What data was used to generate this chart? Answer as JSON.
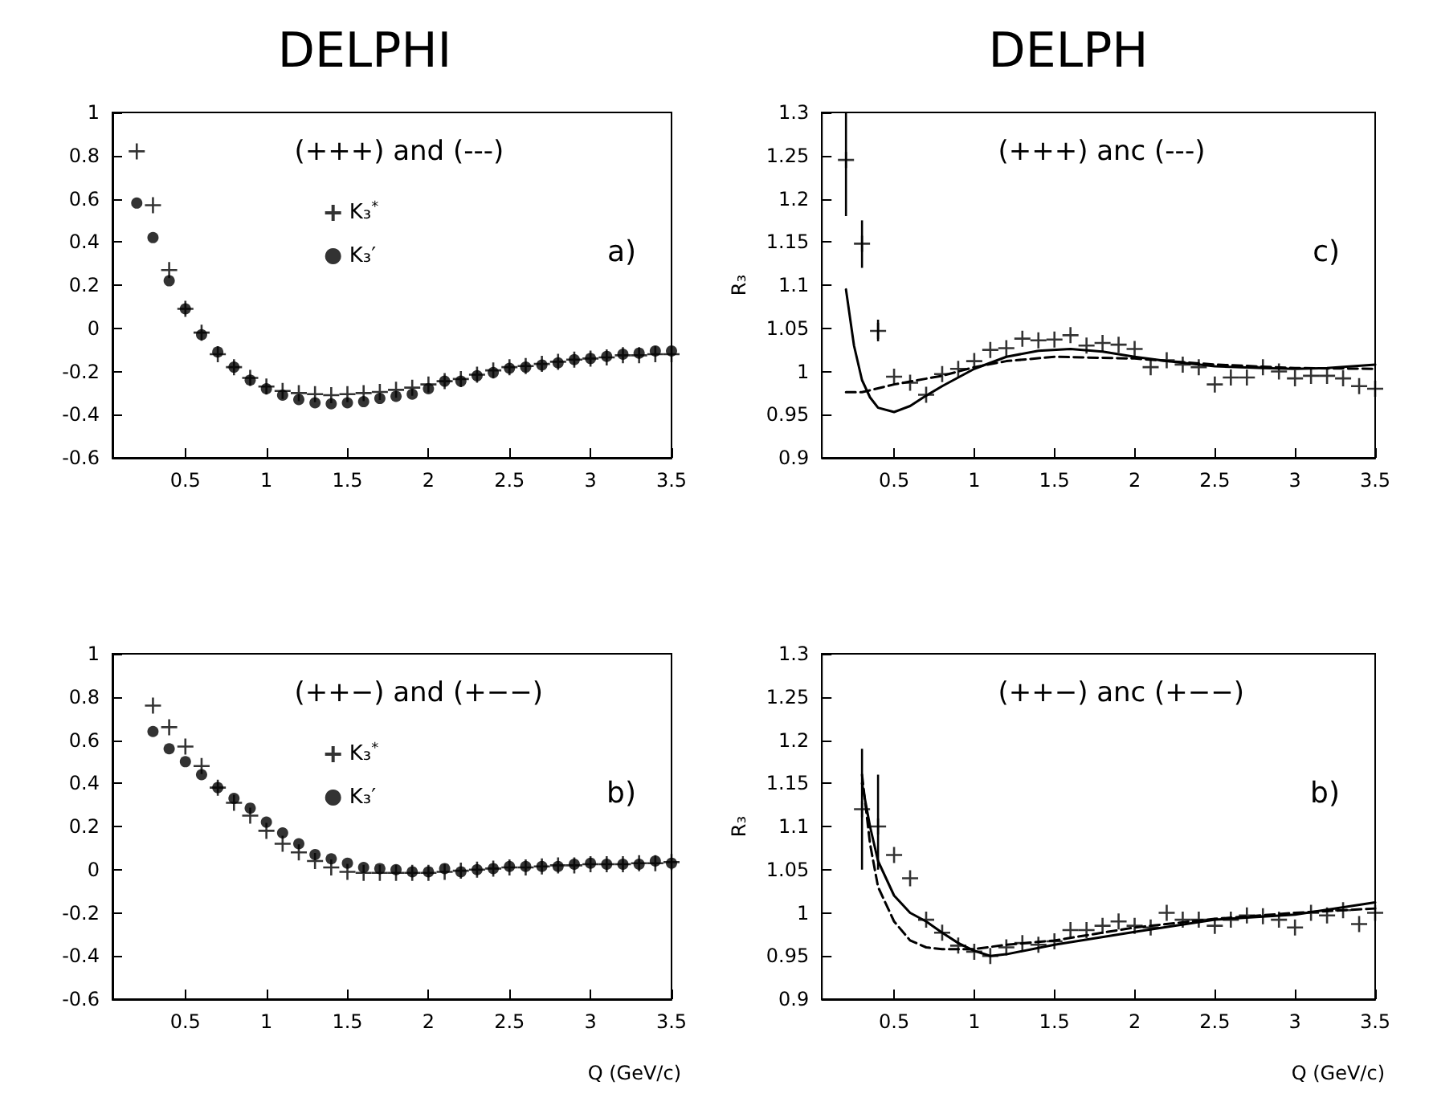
{
  "chart_data": [
    {
      "type": "scatter",
      "title": "DELPHI",
      "annotations": [
        "(+++) and (---)",
        "a)"
      ],
      "xlim": [
        0.05,
        3.5
      ],
      "xticks": [
        0.5,
        1,
        1.5,
        2,
        2.5,
        3,
        3.5
      ],
      "ylim": [
        -0.6,
        1
      ],
      "yticks": [
        -0.6,
        -0.4,
        -0.2,
        0,
        0.2,
        0.4,
        0.6,
        0.8,
        1
      ],
      "legend": "top",
      "x": [
        0.2,
        0.3,
        0.4,
        0.5,
        0.6,
        0.7,
        0.8,
        0.9,
        1.0,
        1.1,
        1.2,
        1.3,
        1.4,
        1.5,
        1.6,
        1.7,
        1.8,
        1.9,
        2.0,
        2.1,
        2.2,
        2.3,
        2.4,
        2.5,
        2.6,
        2.7,
        2.8,
        2.9,
        3.0,
        3.1,
        3.2,
        3.3,
        3.4,
        3.5
      ],
      "series": [
        {
          "name": "K₃$^{*}$",
          "color": "#000000",
          "marker": "cross",
          "values": [
            0.82,
            0.57,
            0.27,
            0.09,
            -0.02,
            -0.12,
            -0.18,
            -0.23,
            -0.27,
            -0.29,
            -0.3,
            -0.305,
            -0.31,
            -0.305,
            -0.3,
            -0.295,
            -0.285,
            -0.275,
            -0.26,
            -0.245,
            -0.235,
            -0.215,
            -0.195,
            -0.18,
            -0.175,
            -0.165,
            -0.155,
            -0.145,
            -0.14,
            -0.135,
            -0.125,
            -0.125,
            -0.12,
            -0.12
          ]
        },
        {
          "name": "K₃′",
          "color": "#000000",
          "marker": "circle",
          "values": [
            0.58,
            0.42,
            0.22,
            0.09,
            -0.03,
            -0.11,
            -0.18,
            -0.24,
            -0.28,
            -0.31,
            -0.33,
            -0.345,
            -0.35,
            -0.345,
            -0.34,
            -0.325,
            -0.315,
            -0.305,
            -0.28,
            -0.245,
            -0.245,
            -0.22,
            -0.205,
            -0.185,
            -0.18,
            -0.17,
            -0.16,
            -0.145,
            -0.14,
            -0.13,
            -0.12,
            -0.115,
            -0.105,
            -0.105
          ]
        }
      ]
    },
    {
      "type": "scatter",
      "title": "DELPH",
      "ylabel": "R₃",
      "annotations": [
        "(+++) anc (---)",
        "c)"
      ],
      "xlim": [
        0.05,
        3.5
      ],
      "xticks": [
        0.5,
        1,
        1.5,
        2,
        2.5,
        3,
        3.5
      ],
      "ylim": [
        0.9,
        1.3
      ],
      "yticks": [
        0.9,
        0.95,
        1,
        1.05,
        1.1,
        1.15,
        1.2,
        1.25,
        1.3
      ],
      "x": [
        0.2,
        0.3,
        0.4,
        0.5,
        0.6,
        0.7,
        0.8,
        0.9,
        1.0,
        1.1,
        1.2,
        1.3,
        1.4,
        1.5,
        1.6,
        1.7,
        1.8,
        1.9,
        2.0,
        2.1,
        2.2,
        2.3,
        2.4,
        2.5,
        2.6,
        2.7,
        2.8,
        2.9,
        3.0,
        3.1,
        3.2,
        3.3,
        3.4,
        3.5
      ],
      "series": [
        {
          "color": "#000000",
          "marker": "cross",
          "values": [
            1.245,
            1.148,
            1.047,
            0.994,
            0.987,
            0.973,
            0.997,
            1.003,
            1.012,
            1.025,
            1.027,
            1.038,
            1.036,
            1.037,
            1.042,
            1.03,
            1.033,
            1.031,
            1.026,
            1.005,
            1.013,
            1.008,
            1.005,
            0.985,
            0.993,
            0.993,
            1.005,
            1.0,
            0.992,
            0.995,
            0.995,
            0.992,
            0.983,
            0.98
          ],
          "errors": [
            [
              1.18,
              1.3
            ],
            [
              1.12,
              1.175
            ],
            [
              1.035,
              1.06
            ],
            null,
            null,
            null,
            null,
            null,
            null,
            null,
            null,
            null,
            null,
            null,
            null,
            null,
            null,
            null,
            null,
            null,
            null,
            null,
            null,
            null,
            null,
            null,
            null,
            null,
            null,
            null,
            null,
            null,
            null,
            null
          ]
        },
        {
          "type": "line",
          "color": "#000000",
          "line_style": "dashed",
          "x": [
            0.2,
            0.3,
            0.5,
            0.8,
            1.0,
            1.2,
            1.5,
            2.0,
            2.5,
            3.0,
            3.5
          ],
          "values": [
            0.976,
            0.976,
            0.985,
            0.995,
            1.005,
            1.012,
            1.017,
            1.015,
            1.008,
            1.004,
            1.003
          ]
        },
        {
          "type": "line",
          "color": "#000000",
          "line_style": "solid",
          "x": [
            0.2,
            0.25,
            0.3,
            0.35,
            0.4,
            0.5,
            0.6,
            0.7,
            0.8,
            1.0,
            1.2,
            1.4,
            1.6,
            1.8,
            2.0,
            2.2,
            2.5,
            2.8,
            3.0,
            3.2,
            3.5
          ],
          "values": [
            1.095,
            1.03,
            0.99,
            0.97,
            0.958,
            0.953,
            0.96,
            0.972,
            0.983,
            1.003,
            1.017,
            1.024,
            1.026,
            1.023,
            1.017,
            1.012,
            1.006,
            1.004,
            1.003,
            1.004,
            1.008
          ]
        }
      ]
    },
    {
      "type": "scatter",
      "xlabel": "Q (GeV/c)",
      "annotations": [
        "(++−) and (+−−)",
        "b)"
      ],
      "xlim": [
        0.05,
        3.5
      ],
      "xticks": [
        0.5,
        1,
        1.5,
        2,
        2.5,
        3,
        3.5
      ],
      "ylim": [
        -0.6,
        1
      ],
      "yticks": [
        -0.6,
        -0.4,
        -0.2,
        0,
        0.2,
        0.4,
        0.6,
        0.8,
        1
      ],
      "legend": "top",
      "x": [
        0.3,
        0.4,
        0.5,
        0.6,
        0.7,
        0.8,
        0.9,
        1.0,
        1.1,
        1.2,
        1.3,
        1.4,
        1.5,
        1.6,
        1.7,
        1.8,
        1.9,
        2.0,
        2.1,
        2.2,
        2.3,
        2.4,
        2.5,
        2.6,
        2.7,
        2.8,
        2.9,
        3.0,
        3.1,
        3.2,
        3.3,
        3.4,
        3.5
      ],
      "series": [
        {
          "name": "K₃$^{*}$",
          "color": "#000000",
          "marker": "cross",
          "values": [
            0.76,
            0.66,
            0.57,
            0.48,
            0.38,
            0.31,
            0.25,
            0.18,
            0.12,
            0.08,
            0.04,
            0.01,
            -0.01,
            -0.015,
            -0.015,
            -0.015,
            -0.015,
            -0.015,
            -0.01,
            -0.005,
            0.0,
            0.005,
            0.01,
            0.01,
            0.015,
            0.02,
            0.02,
            0.025,
            0.025,
            0.025,
            0.03,
            0.03,
            0.035
          ]
        },
        {
          "name": "K₃′",
          "color": "#000000",
          "marker": "circle",
          "values": [
            0.64,
            0.56,
            0.5,
            0.44,
            0.38,
            0.33,
            0.285,
            0.22,
            0.17,
            0.12,
            0.07,
            0.05,
            0.03,
            0.01,
            0.005,
            0.0,
            -0.01,
            -0.01,
            0.005,
            -0.01,
            0.0,
            0.005,
            0.015,
            0.015,
            0.015,
            0.015,
            0.025,
            0.03,
            0.025,
            0.025,
            0.025,
            0.04,
            0.03
          ]
        }
      ]
    },
    {
      "type": "scatter",
      "xlabel": "Q (GeV/c)",
      "ylabel": "R₃",
      "annotations": [
        "(++−) anc (+−−)",
        "b)"
      ],
      "xlim": [
        0.05,
        3.5
      ],
      "xticks": [
        0.5,
        1,
        1.5,
        2,
        2.5,
        3,
        3.5
      ],
      "ylim": [
        0.9,
        1.3
      ],
      "yticks": [
        0.9,
        0.95,
        1,
        1.05,
        1.1,
        1.15,
        1.2,
        1.25,
        1.3
      ],
      "x": [
        0.3,
        0.4,
        0.5,
        0.6,
        0.7,
        0.8,
        0.9,
        1.0,
        1.1,
        1.2,
        1.3,
        1.4,
        1.5,
        1.6,
        1.7,
        1.8,
        1.9,
        2.0,
        2.1,
        2.2,
        2.3,
        2.4,
        2.5,
        2.6,
        2.7,
        2.8,
        2.9,
        3.0,
        3.1,
        3.2,
        3.3,
        3.4,
        3.5
      ],
      "series": [
        {
          "color": "#000000",
          "marker": "cross",
          "values": [
            1.12,
            1.1,
            1.067,
            1.04,
            0.992,
            0.977,
            0.962,
            0.955,
            0.95,
            0.96,
            0.965,
            0.963,
            0.967,
            0.98,
            0.98,
            0.985,
            0.99,
            0.985,
            0.983,
            1.0,
            0.992,
            0.992,
            0.985,
            0.992,
            0.997,
            0.996,
            0.992,
            0.983,
            1.0,
            0.997,
            1.003,
            0.987,
            1.0
          ],
          "errors": [
            [
              1.05,
              1.19
            ],
            [
              1.05,
              1.16
            ],
            null,
            null,
            null,
            null,
            null,
            null,
            null,
            null,
            null,
            null,
            null,
            null,
            null,
            null,
            null,
            null,
            null,
            null,
            null,
            null,
            null,
            null,
            null,
            null,
            null,
            null,
            null,
            null,
            null,
            null,
            null
          ]
        },
        {
          "type": "line",
          "color": "#000000",
          "line_style": "dashed",
          "x": [
            0.3,
            0.35,
            0.4,
            0.5,
            0.6,
            0.7,
            0.8,
            1.0,
            1.2,
            1.5,
            2.0,
            2.5,
            3.0,
            3.5
          ],
          "values": [
            1.16,
            1.08,
            1.03,
            0.99,
            0.968,
            0.96,
            0.958,
            0.958,
            0.963,
            0.968,
            0.983,
            0.993,
            1.0,
            1.005
          ]
        },
        {
          "type": "line",
          "color": "#000000",
          "line_style": "solid",
          "x": [
            0.3,
            0.35,
            0.4,
            0.5,
            0.6,
            0.7,
            0.8,
            0.9,
            1.0,
            1.1,
            1.2,
            1.5,
            2.0,
            2.5,
            3.0,
            3.5
          ],
          "values": [
            1.15,
            1.1,
            1.06,
            1.02,
            1.0,
            0.99,
            0.977,
            0.965,
            0.956,
            0.95,
            0.952,
            0.963,
            0.978,
            0.992,
            0.998,
            1.012
          ]
        }
      ]
    }
  ]
}
